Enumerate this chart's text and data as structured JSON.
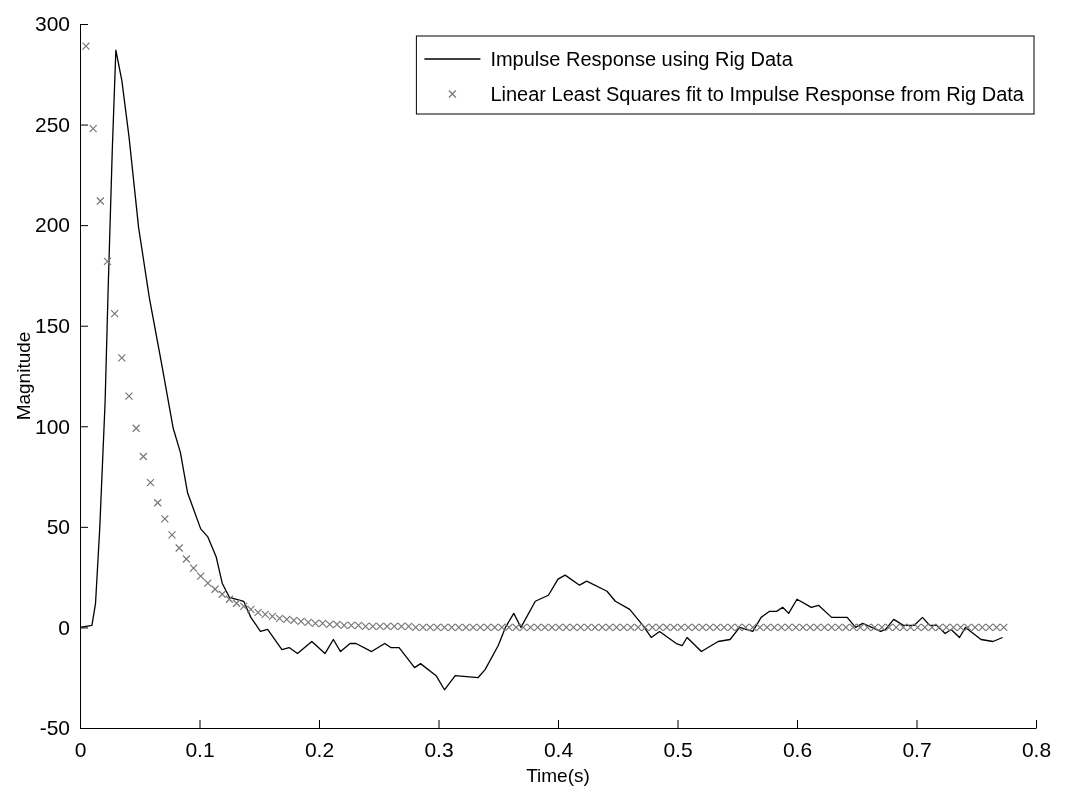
{
  "chart_data": {
    "type": "line",
    "xlabel": "Time(s)",
    "ylabel": "Magnitude",
    "xlim": [
      0,
      0.8
    ],
    "ylim": [
      -50,
      300
    ],
    "xticks": [
      0,
      0.1,
      0.2,
      0.3,
      0.4,
      0.5,
      0.6,
      0.7,
      0.8
    ],
    "yticks": [
      -50,
      0,
      50,
      100,
      150,
      200,
      250,
      300
    ],
    "grid": false,
    "legend": "top right",
    "series": [
      {
        "name": "Impulse Response using Rig Data",
        "color": "#000000",
        "line_style": "solid",
        "x": [
          0,
          0.01,
          0.013,
          0.0165,
          0.021,
          0.0235,
          0.027,
          0.03,
          0.035,
          0.041,
          0.049,
          0.058,
          0.068,
          0.078,
          0.084,
          0.09,
          0.101,
          0.107,
          0.114,
          0.119,
          0.125,
          0.137,
          0.143,
          0.151,
          0.157,
          0.169,
          0.175,
          0.182,
          0.194,
          0.205,
          0.212,
          0.218,
          0.226,
          0.231,
          0.244,
          0.255,
          0.26,
          0.267,
          0.28,
          0.285,
          0.298,
          0.305,
          0.314,
          0.333,
          0.339,
          0.35,
          0.356,
          0.363,
          0.369,
          0.381,
          0.392,
          0.4,
          0.406,
          0.418,
          0.424,
          0.441,
          0.448,
          0.46,
          0.471,
          0.478,
          0.485,
          0.499,
          0.504,
          0.508,
          0.52,
          0.534,
          0.544,
          0.552,
          0.563,
          0.57,
          0.577,
          0.583,
          0.588,
          0.593,
          0.6,
          0.612,
          0.618,
          0.629,
          0.633,
          0.642,
          0.649,
          0.655,
          0.67,
          0.674,
          0.681,
          0.689,
          0.698,
          0.705,
          0.711,
          0.717,
          0.724,
          0.729,
          0.736,
          0.741,
          0.754,
          0.764,
          0.772
        ],
        "values": [
          0,
          1,
          12,
          49,
          112,
          167,
          237,
          287,
          272,
          244,
          199,
          164,
          132,
          99,
          87,
          67,
          49,
          45,
          35,
          22,
          15,
          13,
          5,
          -2,
          -1,
          -11,
          -10,
          -13,
          -7,
          -13,
          -6,
          -12,
          -8,
          -8,
          -12,
          -8,
          -10,
          -10,
          -20,
          -18,
          -24,
          -31,
          -24,
          -25,
          -21,
          -9,
          0,
          7,
          0,
          13,
          16,
          24,
          26,
          21,
          23,
          18,
          13,
          9,
          1,
          -5,
          -2,
          -8,
          -9,
          -5,
          -12,
          -7,
          -6,
          0,
          -2,
          5,
          8,
          8,
          10,
          7,
          14,
          10,
          11,
          5,
          5,
          5,
          0,
          2,
          -2,
          -1,
          4,
          1,
          1,
          5,
          1,
          1,
          -3,
          -1,
          -5,
          0,
          -6,
          -7,
          -5
        ]
      },
      {
        "name": "Linear Least Squares fit to Impulse Response from Rig Data",
        "type": "scatter",
        "marker": "cross",
        "color": "#777777",
        "x": [
          0.005,
          0.011,
          0.017,
          0.023,
          0.029,
          0.035,
          0.041,
          0.047,
          0.053,
          0.059,
          0.065,
          0.071,
          0.077,
          0.083,
          0.089,
          0.095,
          0.101,
          0.107,
          0.113,
          0.119,
          0.125,
          0.131,
          0.137,
          0.143,
          0.149,
          0.155,
          0.161,
          0.167,
          0.173,
          0.179,
          0.185,
          0.191,
          0.197,
          0.203,
          0.209,
          0.215,
          0.221,
          0.227,
          0.233,
          0.239,
          0.245,
          0.251,
          0.257,
          0.263,
          0.269,
          0.275,
          0.281,
          0.287,
          0.293,
          0.299,
          0.305,
          0.311,
          0.317,
          0.323,
          0.329,
          0.335,
          0.341,
          0.347,
          0.353,
          0.359,
          0.365,
          0.371,
          0.377,
          0.383,
          0.389,
          0.395,
          0.401,
          0.407,
          0.413,
          0.419,
          0.425,
          0.431,
          0.437,
          0.443,
          0.449,
          0.455,
          0.461,
          0.467,
          0.473,
          0.479,
          0.485,
          0.491,
          0.497,
          0.503,
          0.509,
          0.515,
          0.521,
          0.527,
          0.533,
          0.539,
          0.545,
          0.551,
          0.557,
          0.563,
          0.569,
          0.575,
          0.581,
          0.587,
          0.593,
          0.599,
          0.605,
          0.611,
          0.617,
          0.623,
          0.629,
          0.635,
          0.641,
          0.647,
          0.653,
          0.659,
          0.665,
          0.671,
          0.677,
          0.683,
          0.689,
          0.695,
          0.701,
          0.707,
          0.713,
          0.719,
          0.725,
          0.731,
          0.737,
          0.743,
          0.749,
          0.755,
          0.761,
          0.767,
          0.773
        ],
        "values": [
          289,
          248,
          212,
          182,
          156,
          134,
          115,
          99,
          85,
          72,
          62,
          54,
          46,
          39.5,
          34,
          29.5,
          25.5,
          22,
          19,
          16.5,
          14,
          12,
          10.5,
          9,
          7.5,
          6.5,
          5.5,
          4.5,
          4,
          3.5,
          3,
          2.5,
          2,
          2,
          1.5,
          1.5,
          1,
          1,
          1,
          0.5,
          0.5,
          0.5,
          0.5,
          0.5,
          0.5,
          0.5,
          0,
          0,
          0,
          0,
          0,
          0,
          0,
          0,
          0,
          0,
          0,
          0,
          0,
          0,
          0,
          0,
          0,
          0,
          0,
          0,
          0,
          0,
          0,
          0,
          0,
          0,
          0,
          0,
          0,
          0,
          0,
          0,
          0,
          0,
          0,
          0,
          0,
          0,
          0,
          0,
          0,
          0,
          0,
          0,
          0,
          0,
          0,
          0,
          0,
          0,
          0,
          0,
          0,
          0,
          0,
          0,
          0,
          0,
          0,
          0,
          0,
          0,
          0,
          0,
          0,
          0,
          0,
          0,
          0,
          0,
          0,
          0,
          0,
          0,
          0,
          0,
          0,
          0,
          0,
          0,
          0,
          0,
          0
        ]
      }
    ]
  }
}
